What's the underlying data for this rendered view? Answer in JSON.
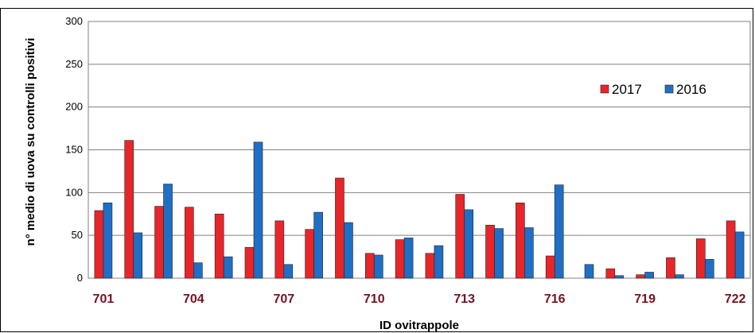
{
  "chart_data": {
    "type": "bar",
    "title": "",
    "xlabel": "ID ovitrappole",
    "ylabel": "n° medio di uova su controlli positivi",
    "ylim": [
      0,
      300
    ],
    "yticks": [
      0,
      50,
      100,
      150,
      200,
      250,
      300
    ],
    "grid": true,
    "legend_position": "top-right",
    "categories": [
      "701",
      "702",
      "703",
      "704",
      "705",
      "706",
      "707",
      "708",
      "709",
      "710",
      "711",
      "712",
      "713",
      "714",
      "715",
      "716",
      "717",
      "718",
      "719",
      "720",
      "721",
      "722"
    ],
    "tick_labels": [
      "701",
      "704",
      "707",
      "710",
      "713",
      "716",
      "719",
      "722"
    ],
    "series": [
      {
        "name": "2017",
        "color": "#e8262a",
        "values": [
          79,
          161,
          84,
          83,
          75,
          36,
          67,
          57,
          117,
          29,
          45,
          29,
          98,
          62,
          88,
          26,
          0,
          11,
          4,
          24,
          46,
          67
        ]
      },
      {
        "name": "2016",
        "color": "#1f6fc5",
        "values": [
          88,
          53,
          110,
          18,
          25,
          159,
          16,
          77,
          65,
          27,
          47,
          38,
          80,
          58,
          59,
          109,
          16,
          3,
          7,
          4,
          22,
          54
        ]
      }
    ]
  }
}
